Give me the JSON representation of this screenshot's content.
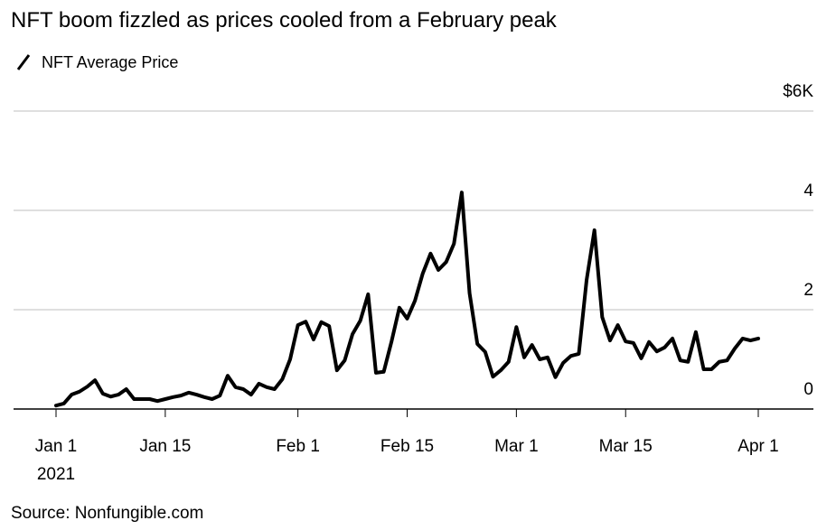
{
  "chart_data": {
    "type": "line",
    "title": "NFT boom fizzled as prices cooled from a February peak",
    "source": "Source: Nonfungible.com",
    "x": [
      "2021-01-01",
      "2021-01-02",
      "2021-01-03",
      "2021-01-04",
      "2021-01-05",
      "2021-01-06",
      "2021-01-07",
      "2021-01-08",
      "2021-01-09",
      "2021-01-10",
      "2021-01-11",
      "2021-01-12",
      "2021-01-13",
      "2021-01-14",
      "2021-01-15",
      "2021-01-16",
      "2021-01-17",
      "2021-01-18",
      "2021-01-19",
      "2021-01-20",
      "2021-01-21",
      "2021-01-22",
      "2021-01-23",
      "2021-01-24",
      "2021-01-25",
      "2021-01-26",
      "2021-01-27",
      "2021-01-28",
      "2021-01-29",
      "2021-01-30",
      "2021-01-31",
      "2021-02-01",
      "2021-02-02",
      "2021-02-03",
      "2021-02-04",
      "2021-02-05",
      "2021-02-06",
      "2021-02-07",
      "2021-02-08",
      "2021-02-09",
      "2021-02-10",
      "2021-02-11",
      "2021-02-12",
      "2021-02-13",
      "2021-02-14",
      "2021-02-15",
      "2021-02-16",
      "2021-02-17",
      "2021-02-18",
      "2021-02-19",
      "2021-02-20",
      "2021-02-21",
      "2021-02-22",
      "2021-02-23",
      "2021-02-24",
      "2021-02-25",
      "2021-02-26",
      "2021-02-27",
      "2021-02-28",
      "2021-03-01",
      "2021-03-02",
      "2021-03-03",
      "2021-03-04",
      "2021-03-05",
      "2021-03-06",
      "2021-03-07",
      "2021-03-08",
      "2021-03-09",
      "2021-03-10",
      "2021-03-11",
      "2021-03-12",
      "2021-03-13",
      "2021-03-14",
      "2021-03-15",
      "2021-03-16",
      "2021-03-17",
      "2021-03-18",
      "2021-03-19",
      "2021-03-20",
      "2021-03-21",
      "2021-03-22",
      "2021-03-23",
      "2021-03-24",
      "2021-03-25",
      "2021-03-26",
      "2021-03-27",
      "2021-03-28",
      "2021-03-29",
      "2021-03-30",
      "2021-03-31",
      "2021-04-01"
    ],
    "series": [
      {
        "name": "NFT Average Price",
        "color": "#000000",
        "values": [
          0.07,
          0.11,
          0.29,
          0.35,
          0.45,
          0.58,
          0.31,
          0.25,
          0.29,
          0.4,
          0.2,
          0.2,
          0.2,
          0.16,
          0.2,
          0.24,
          0.27,
          0.33,
          0.29,
          0.24,
          0.2,
          0.27,
          0.67,
          0.44,
          0.4,
          0.29,
          0.51,
          0.44,
          0.4,
          0.6,
          1.0,
          1.69,
          1.76,
          1.4,
          1.75,
          1.67,
          0.78,
          0.98,
          1.51,
          1.78,
          2.31,
          0.73,
          0.75,
          1.36,
          2.04,
          1.82,
          2.18,
          2.73,
          3.13,
          2.8,
          2.96,
          3.33,
          4.36,
          2.33,
          1.31,
          1.15,
          0.65,
          0.78,
          0.95,
          1.65,
          1.04,
          1.29,
          1.0,
          1.04,
          0.64,
          0.93,
          1.07,
          1.11,
          2.6,
          3.6,
          1.85,
          1.38,
          1.69,
          1.36,
          1.33,
          1.02,
          1.35,
          1.16,
          1.24,
          1.42,
          0.98,
          0.95,
          1.55,
          0.8,
          0.8,
          0.95,
          0.98,
          1.22,
          1.42,
          1.38,
          1.42
        ]
      }
    ],
    "xlim": [
      "2021-01-01",
      "2021-04-01"
    ],
    "xticks": [
      {
        "value": "2021-01-01",
        "label": "Jan 1"
      },
      {
        "value": "2021-01-15",
        "label": "Jan 15"
      },
      {
        "value": "2021-02-01",
        "label": "Feb 1"
      },
      {
        "value": "2021-02-15",
        "label": "Feb 15"
      },
      {
        "value": "2021-03-01",
        "label": "Mar 1"
      },
      {
        "value": "2021-03-15",
        "label": "Mar 15"
      },
      {
        "value": "2021-04-01",
        "label": "Apr 1"
      }
    ],
    "x_year_label": "2021",
    "ylim": [
      0,
      6
    ],
    "yticks": [
      0,
      2,
      4,
      {
        "value": 6,
        "label": "$6K"
      }
    ],
    "grid": true
  }
}
